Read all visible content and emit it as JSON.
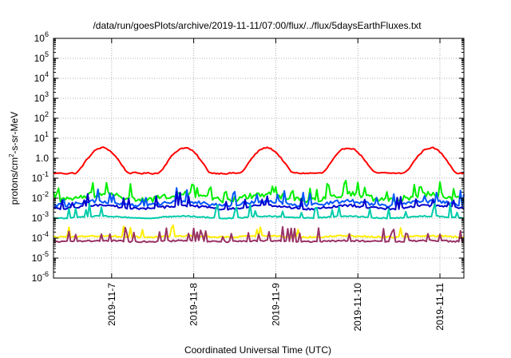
{
  "chart_data": {
    "type": "line",
    "title": "/data/run/goesPlots/archive/2019-11-11/07:00/flux/../flux/5daysEarthFluxes.txt",
    "xlabel": "Coordinated Universal Time (UTC)",
    "ylabel_parts": [
      "protons/cm",
      "2",
      "-s-sr-MeV"
    ],
    "yscale": "log",
    "ylim": [
      1e-06,
      1000000.0
    ],
    "xlim": [
      "2019-11-06 07:00",
      "2019-11-11 07:00"
    ],
    "grid": true,
    "y_ticks": [
      {
        "base": "10",
        "exp": "-6"
      },
      {
        "base": "10",
        "exp": "-5"
      },
      {
        "base": "10",
        "exp": "-4"
      },
      {
        "base": "10",
        "exp": "-3"
      },
      {
        "base": "10",
        "exp": "-2"
      },
      {
        "base": "10",
        "exp": "-1"
      },
      {
        "base": "10",
        "exp": "0",
        "text": "1.0"
      },
      {
        "base": "10",
        "exp": "1"
      },
      {
        "base": "10",
        "exp": "2"
      },
      {
        "base": "10",
        "exp": "3"
      },
      {
        "base": "10",
        "exp": "4"
      },
      {
        "base": "10",
        "exp": "5"
      },
      {
        "base": "10",
        "exp": "6"
      }
    ],
    "x_ticks": [
      "2019-11-7",
      "2019-11-8",
      "2019-11-9",
      "2019-11-10",
      "2019-11-11"
    ],
    "x_tick_hours": [
      17,
      41,
      65,
      89,
      113
    ],
    "hours_span": 120,
    "series": [
      {
        "color": "#ff0000",
        "kind": "diurnal",
        "base": -0.75,
        "amp": 0.95,
        "period": 24,
        "peak": 14,
        "noise": 0.12,
        "spikes": 0.0
      },
      {
        "color": "#00ee00",
        "kind": "noisy",
        "base": -1.95,
        "amp": 0.15,
        "period": 24,
        "peak": 14,
        "noise": 0.28,
        "spikes": 0.18
      },
      {
        "color": "#0055ff",
        "kind": "noisy",
        "base": -2.25,
        "amp": 0.1,
        "period": 24,
        "peak": 14,
        "noise": 0.18,
        "spikes": 0.12
      },
      {
        "color": "#0000cc",
        "kind": "noisy",
        "base": -2.45,
        "amp": 0.08,
        "period": 24,
        "peak": 14,
        "noise": 0.12,
        "spikes": 0.08
      },
      {
        "color": "#00ccaa",
        "kind": "noisy",
        "base": -2.95,
        "amp": 0.05,
        "period": 24,
        "peak": 14,
        "noise": 0.06,
        "spikes": 0.08
      },
      {
        "color": "#ffee00",
        "kind": "noisy",
        "base": -3.92,
        "amp": 0.03,
        "period": 24,
        "peak": 14,
        "noise": 0.08,
        "spikes": 0.05
      },
      {
        "color": "#993366",
        "kind": "noisy",
        "base": -4.15,
        "amp": 0.02,
        "period": 24,
        "peak": 14,
        "noise": 0.08,
        "spikes": 0.18
      }
    ]
  }
}
